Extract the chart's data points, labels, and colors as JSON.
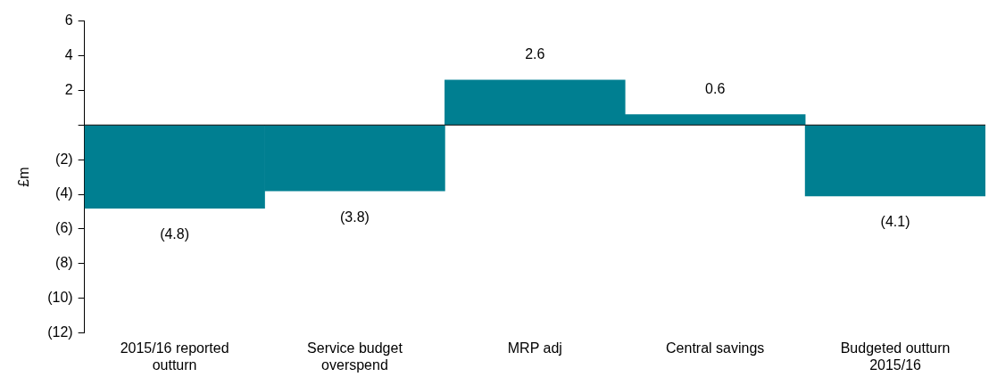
{
  "chart_data": {
    "type": "bar",
    "ylabel": "£m",
    "categories": [
      "2015/16 reported outturn",
      "Service budget overspend",
      "MRP adj",
      "Central savings",
      "Budgeted outturn 2015/16"
    ],
    "values": [
      -4.8,
      -3.8,
      2.6,
      0.6,
      -4.1
    ],
    "value_labels": [
      "(4.8)",
      "(3.8)",
      "2.6",
      "0.6",
      "(4.1)"
    ],
    "color": "#007f91",
    "ylim": [
      -12,
      6
    ],
    "yticks": [
      {
        "value": -12,
        "label": "(12)"
      },
      {
        "value": -10,
        "label": "(10)"
      },
      {
        "value": -8,
        "label": "(8)"
      },
      {
        "value": -6,
        "label": "(6)"
      },
      {
        "value": -4,
        "label": "(4)"
      },
      {
        "value": -2,
        "label": "(2)"
      },
      {
        "value": 0,
        "label": null
      },
      2,
      4,
      6
    ],
    "ref_lines": [
      {
        "axis": "y",
        "value": 0,
        "color": "#000000"
      }
    ],
    "grid": false,
    "legend": false
  }
}
